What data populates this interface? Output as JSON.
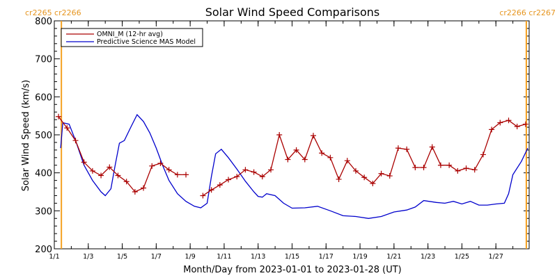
{
  "chart_data": {
    "type": "line",
    "title": "Solar Wind Speed Comparisons",
    "xlabel": "Month/Day from 2023-01-01 to 2023-01-28 (UT)",
    "ylabel": "Solar Wind Speed (km/s)",
    "xlim": [
      "2023-01-01",
      "2023-01-28 23:00"
    ],
    "ylim": [
      200,
      800
    ],
    "yticks": [
      200,
      300,
      400,
      500,
      600,
      700,
      800
    ],
    "xtick_dates": [
      "2023-01-01",
      "2023-01-03",
      "2023-01-05",
      "2023-01-07",
      "2023-01-09",
      "2023-01-11",
      "2023-01-13",
      "2023-01-15",
      "2023-01-17",
      "2023-01-19",
      "2023-01-21",
      "2023-01-23",
      "2023-01-25",
      "2023-01-27"
    ],
    "xtick_labels": [
      "1/1",
      "1/3",
      "1/5",
      "1/7",
      "1/9",
      "1/11",
      "1/13",
      "1/15",
      "1/17",
      "1/19",
      "1/21",
      "1/23",
      "1/25",
      "1/27"
    ],
    "legend_position": "top-left",
    "carrington_markers": [
      {
        "date": "2023-01-01 10:00",
        "labels": [
          "cr2265",
          "cr2266"
        ],
        "side": "left"
      },
      {
        "date": "2023-01-28 19:00",
        "labels": [
          "cr2266",
          "cr2267"
        ],
        "side": "right"
      }
    ],
    "colors": {
      "omni": "#aa0000",
      "model": "#0000cc",
      "rotation": "#f5a020"
    },
    "series": [
      {
        "name": "OMNI_M (12-hr avg)",
        "marker": "plus",
        "segments": [
          [
            [
              "2023-01-01 06:00",
              548
            ],
            [
              "2023-01-01 18:00",
              518
            ],
            [
              "2023-01-02 06:00",
              485
            ],
            [
              "2023-01-02 18:00",
              428
            ],
            [
              "2023-01-03 06:00",
              405
            ],
            [
              "2023-01-03 18:00",
              393
            ],
            [
              "2023-01-04 06:00",
              415
            ],
            [
              "2023-01-04 18:00",
              393
            ],
            [
              "2023-01-05 06:00",
              377
            ],
            [
              "2023-01-05 18:00",
              350
            ],
            [
              "2023-01-06 06:00",
              360
            ],
            [
              "2023-01-06 18:00",
              418
            ],
            [
              "2023-01-07 06:00",
              425
            ],
            [
              "2023-01-07 18:00",
              408
            ],
            [
              "2023-01-08 06:00",
              395
            ],
            [
              "2023-01-08 18:00",
              395
            ]
          ],
          [
            [
              "2023-01-09 18:00",
              340
            ],
            [
              "2023-01-10 06:00",
              355
            ],
            [
              "2023-01-10 18:00",
              368
            ],
            [
              "2023-01-11 06:00",
              382
            ],
            [
              "2023-01-11 18:00",
              390
            ],
            [
              "2023-01-12 06:00",
              408
            ],
            [
              "2023-01-12 18:00",
              402
            ],
            [
              "2023-01-13 06:00",
              390
            ],
            [
              "2023-01-13 18:00",
              408
            ],
            [
              "2023-01-14 06:00",
              500
            ],
            [
              "2023-01-14 18:00",
              435
            ],
            [
              "2023-01-15 06:00",
              460
            ],
            [
              "2023-01-15 18:00",
              435
            ],
            [
              "2023-01-16 06:00",
              498
            ],
            [
              "2023-01-16 18:00",
              452
            ],
            [
              "2023-01-17 06:00",
              440
            ],
            [
              "2023-01-17 18:00",
              383
            ],
            [
              "2023-01-18 06:00",
              432
            ],
            [
              "2023-01-18 18:00",
              405
            ],
            [
              "2023-01-19 06:00",
              388
            ],
            [
              "2023-01-19 18:00",
              372
            ],
            [
              "2023-01-20 06:00",
              398
            ],
            [
              "2023-01-20 18:00",
              392
            ],
            [
              "2023-01-21 06:00",
              465
            ],
            [
              "2023-01-21 18:00",
              462
            ],
            [
              "2023-01-22 06:00",
              414
            ],
            [
              "2023-01-22 18:00",
              414
            ],
            [
              "2023-01-23 06:00",
              468
            ],
            [
              "2023-01-23 18:00",
              420
            ],
            [
              "2023-01-24 06:00",
              420
            ],
            [
              "2023-01-24 18:00",
              405
            ],
            [
              "2023-01-25 06:00",
              412
            ],
            [
              "2023-01-25 18:00",
              408
            ],
            [
              "2023-01-26 06:00",
              448
            ],
            [
              "2023-01-26 18:00",
              514
            ],
            [
              "2023-01-27 06:00",
              532
            ],
            [
              "2023-01-27 18:00",
              538
            ],
            [
              "2023-01-28 06:00",
              522
            ],
            [
              "2023-01-28 18:00",
              528
            ]
          ]
        ]
      },
      {
        "name": "Predictive Science MAS Model",
        "points": [
          [
            "2023-01-01 09:00",
            465
          ],
          [
            "2023-01-01 12:00",
            532
          ],
          [
            "2023-01-01 21:00",
            528
          ],
          [
            "2023-01-02 06:00",
            485
          ],
          [
            "2023-01-02 18:00",
            420
          ],
          [
            "2023-01-03 06:00",
            380
          ],
          [
            "2023-01-03 18:00",
            350
          ],
          [
            "2023-01-04 00:00",
            340
          ],
          [
            "2023-01-04 08:00",
            358
          ],
          [
            "2023-01-04 14:00",
            420
          ],
          [
            "2023-01-04 20:00",
            478
          ],
          [
            "2023-01-05 03:00",
            485
          ],
          [
            "2023-01-05 12:00",
            520
          ],
          [
            "2023-01-05 21:00",
            553
          ],
          [
            "2023-01-06 06:00",
            535
          ],
          [
            "2023-01-06 15:00",
            505
          ],
          [
            "2023-01-07 00:00",
            465
          ],
          [
            "2023-01-07 09:00",
            420
          ],
          [
            "2023-01-07 18:00",
            380
          ],
          [
            "2023-01-08 06:00",
            345
          ],
          [
            "2023-01-08 18:00",
            325
          ],
          [
            "2023-01-09 06:00",
            312
          ],
          [
            "2023-01-09 15:00",
            308
          ],
          [
            "2023-01-10 00:00",
            320
          ],
          [
            "2023-01-10 06:00",
            390
          ],
          [
            "2023-01-10 12:00",
            450
          ],
          [
            "2023-01-10 20:00",
            462
          ],
          [
            "2023-01-11 06:00",
            440
          ],
          [
            "2023-01-11 18:00",
            410
          ],
          [
            "2023-01-12 06:00",
            378
          ],
          [
            "2023-01-12 18:00",
            350
          ],
          [
            "2023-01-13 00:00",
            338
          ],
          [
            "2023-01-13 06:00",
            336
          ],
          [
            "2023-01-13 12:00",
            345
          ],
          [
            "2023-01-14 00:00",
            340
          ],
          [
            "2023-01-14 12:00",
            320
          ],
          [
            "2023-01-15 00:00",
            307
          ],
          [
            "2023-01-15 18:00",
            308
          ],
          [
            "2023-01-16 12:00",
            312
          ],
          [
            "2023-01-17 06:00",
            300
          ],
          [
            "2023-01-18 00:00",
            287
          ],
          [
            "2023-01-18 18:00",
            285
          ],
          [
            "2023-01-19 12:00",
            280
          ],
          [
            "2023-01-20 06:00",
            285
          ],
          [
            "2023-01-21 00:00",
            297
          ],
          [
            "2023-01-21 18:00",
            302
          ],
          [
            "2023-01-22 06:00",
            310
          ],
          [
            "2023-01-22 18:00",
            327
          ],
          [
            "2023-01-23 12:00",
            322
          ],
          [
            "2023-01-24 00:00",
            320
          ],
          [
            "2023-01-24 12:00",
            325
          ],
          [
            "2023-01-25 00:00",
            318
          ],
          [
            "2023-01-25 12:00",
            325
          ],
          [
            "2023-01-26 00:00",
            315
          ],
          [
            "2023-01-26 12:00",
            315
          ],
          [
            "2023-01-27 00:00",
            318
          ],
          [
            "2023-01-27 12:00",
            320
          ],
          [
            "2023-01-27 18:00",
            345
          ],
          [
            "2023-01-28 00:00",
            395
          ],
          [
            "2023-01-28 12:00",
            430
          ],
          [
            "2023-01-28 21:00",
            465
          ]
        ]
      }
    ]
  }
}
